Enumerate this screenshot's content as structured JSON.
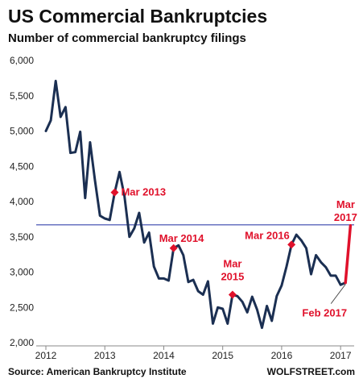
{
  "chart_data": {
    "type": "line",
    "title": "US Commercial Bankruptcies",
    "subtitle": "Number of commercial bankruptcy filings",
    "xlabel": "",
    "ylabel": "",
    "xlim": [
      2012.0,
      2017.23
    ],
    "ylim": [
      2000,
      6000
    ],
    "y_ticks": [
      2000,
      2500,
      3000,
      3500,
      4000,
      4500,
      5000,
      5500,
      6000
    ],
    "y_tick_labels": [
      "2,000",
      "2,500",
      "3,000",
      "3,500",
      "4,000",
      "4,500",
      "5,000",
      "5,500",
      "6,000"
    ],
    "x_ticks": [
      2012,
      2013,
      2014,
      2015,
      2016,
      2017
    ],
    "x_tick_labels": [
      "2012",
      "2013",
      "2014",
      "2015",
      "2016",
      "2017"
    ],
    "grid": false,
    "series": [
      {
        "color": "#1b2f52",
        "x": [
          2012.0,
          2012.083,
          2012.167,
          2012.25,
          2012.333,
          2012.417,
          2012.5,
          2012.583,
          2012.667,
          2012.75,
          2012.833,
          2012.917,
          2013.0,
          2013.083,
          2013.167,
          2013.25,
          2013.333,
          2013.417,
          2013.5,
          2013.583,
          2013.667,
          2013.75,
          2013.833,
          2013.917,
          2014.0,
          2014.083,
          2014.167,
          2014.25,
          2014.333,
          2014.417,
          2014.5,
          2014.583,
          2014.667,
          2014.75,
          2014.833,
          2014.917,
          2015.0,
          2015.083,
          2015.167,
          2015.25,
          2015.333,
          2015.417,
          2015.5,
          2015.583,
          2015.667,
          2015.75,
          2015.833,
          2015.917,
          2016.0,
          2016.083,
          2016.167,
          2016.25,
          2016.333,
          2016.417,
          2016.5,
          2016.583,
          2016.667,
          2016.75,
          2016.833,
          2016.917,
          2017.0,
          2017.083
        ],
        "values": [
          5000,
          5150,
          5710,
          5200,
          5340,
          4690,
          4700,
          4990,
          4050,
          4840,
          4300,
          3800,
          3760,
          3740,
          4130,
          4420,
          4080,
          3500,
          3620,
          3840,
          3420,
          3560,
          3080,
          2910,
          2910,
          2880,
          3340,
          3380,
          3240,
          2860,
          2890,
          2730,
          2680,
          2870,
          2270,
          2500,
          2480,
          2270,
          2680,
          2660,
          2580,
          2430,
          2650,
          2470,
          2210,
          2520,
          2310,
          2660,
          2810,
          3080,
          3390,
          3530,
          3450,
          3340,
          2970,
          3240,
          3140,
          3070,
          2950,
          2950,
          2820,
          2850
        ]
      },
      {
        "color": "#e0112b",
        "x": [
          2017.083,
          2017.167
        ],
        "values": [
          2850,
          3660
        ]
      }
    ],
    "reference_line": {
      "value": 3670,
      "color": "#1b2aa0"
    },
    "markers": [
      {
        "x": 2013.167,
        "value": 4130,
        "label": "Mar 2013"
      },
      {
        "x": 2014.167,
        "value": 3340,
        "label": "Mar 2014"
      },
      {
        "x": 2015.167,
        "value": 2680,
        "label_lines": [
          "Mar",
          "2015"
        ]
      },
      {
        "x": 2016.167,
        "value": 3390,
        "label": "Mar 2016"
      }
    ],
    "annotations": {
      "mar_2017": [
        "Mar",
        "2017"
      ],
      "feb_2017": "Feb 2017"
    },
    "source": "Source: American Bankruptcy Institute",
    "watermark": "WOLFSTREET.com",
    "colors": {
      "line": "#1b2f52",
      "accent": "#e0112b",
      "reference": "#1b2aa0",
      "axis": "#888888"
    }
  }
}
